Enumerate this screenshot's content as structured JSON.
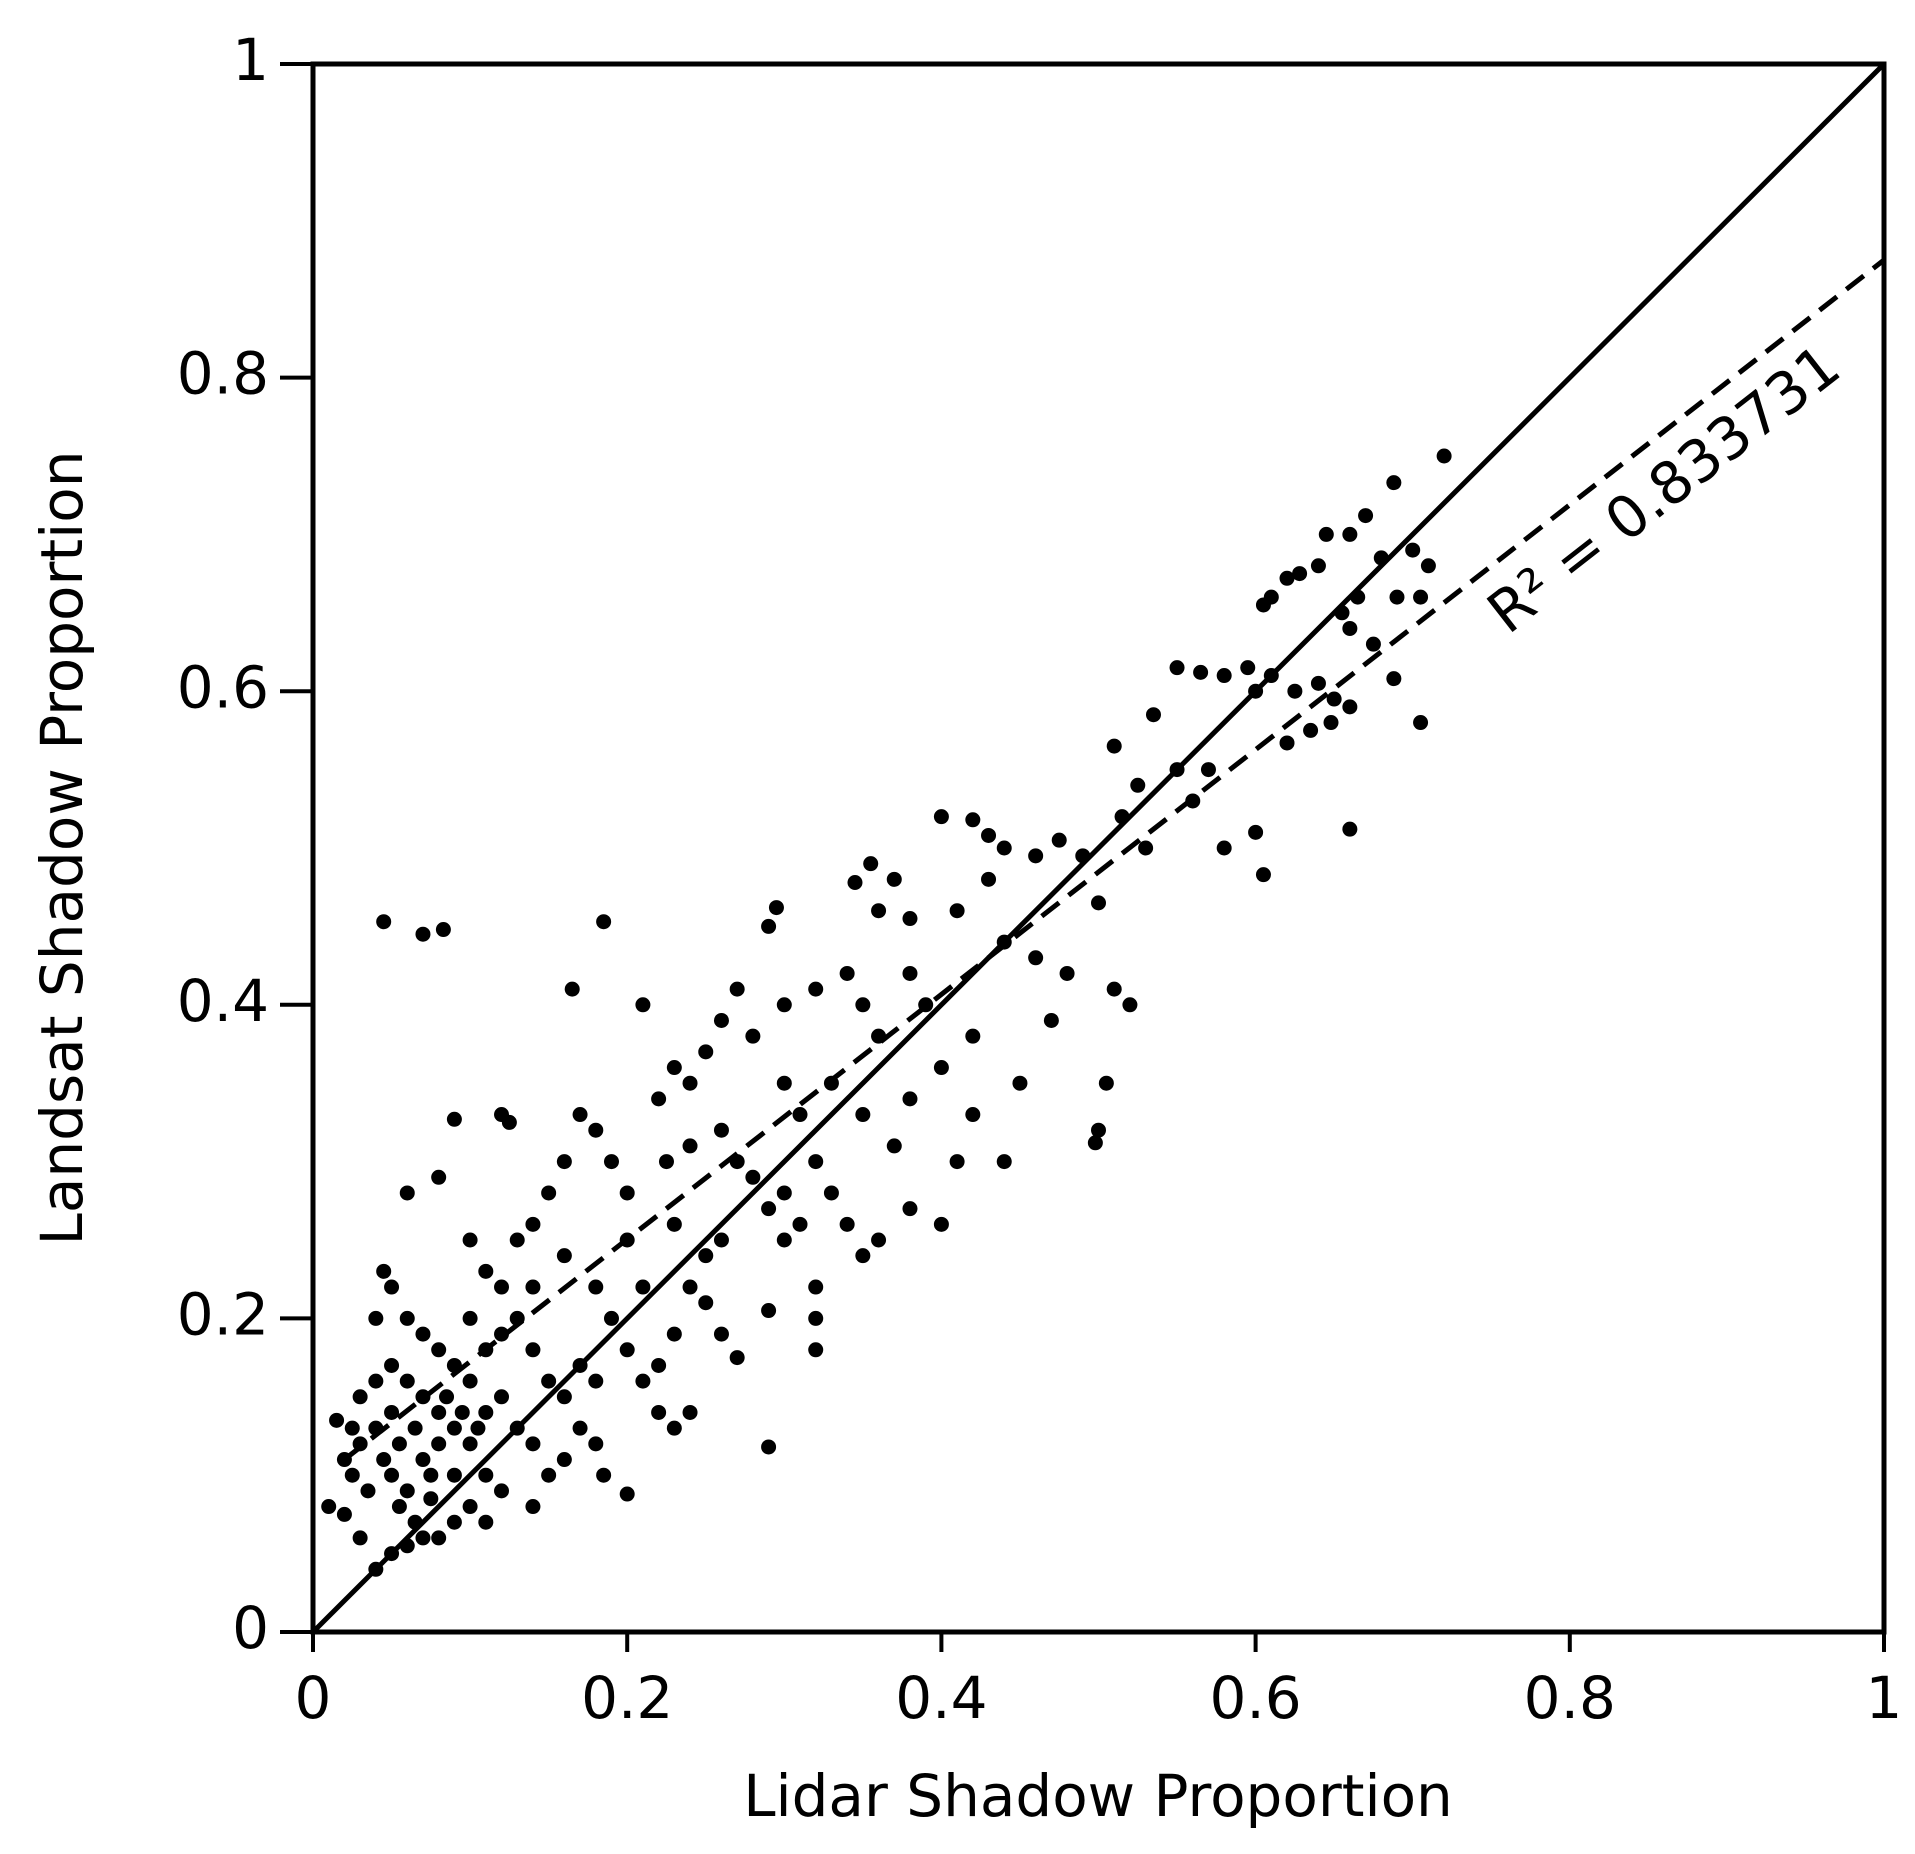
{
  "chart_data": {
    "type": "scatter",
    "x_label": "Lidar Shadow Proportion",
    "y_label": "Landsat Shadow Proportion",
    "annotation": "R² = 0.833731",
    "color": "#000000",
    "xlim": [
      0,
      1
    ],
    "ylim": [
      0,
      1
    ],
    "xticks": [
      0,
      0.2,
      0.4,
      0.6,
      0.8,
      1
    ],
    "yticks": [
      0,
      0.2,
      0.4,
      0.6,
      0.8,
      1
    ],
    "grid": false,
    "x": [
      0.045,
      0.07,
      0.083,
      0.185,
      0.165,
      0.29,
      0.2,
      0.66,
      0.605,
      0.6,
      0.58,
      0.705,
      0.72,
      0.688,
      0.67,
      0.66,
      0.645,
      0.62,
      0.628,
      0.61,
      0.605,
      0.64,
      0.665,
      0.68,
      0.7,
      0.71,
      0.69,
      0.705,
      0.675,
      0.688,
      0.655,
      0.66,
      0.65,
      0.648,
      0.66,
      0.635,
      0.62,
      0.6,
      0.61,
      0.595,
      0.58,
      0.565,
      0.55,
      0.55,
      0.535,
      0.51,
      0.525,
      0.53,
      0.515,
      0.56,
      0.57,
      0.625,
      0.64,
      0.5,
      0.51,
      0.52,
      0.505,
      0.5,
      0.498,
      0.49,
      0.475,
      0.46,
      0.44,
      0.43,
      0.42,
      0.4,
      0.37,
      0.355,
      0.345,
      0.36,
      0.38,
      0.41,
      0.43,
      0.44,
      0.46,
      0.48,
      0.47,
      0.45,
      0.44,
      0.42,
      0.41,
      0.4,
      0.38,
      0.36,
      0.35,
      0.34,
      0.33,
      0.32,
      0.31,
      0.3,
      0.3,
      0.32,
      0.34,
      0.35,
      0.36,
      0.38,
      0.39,
      0.4,
      0.42,
      0.38,
      0.37,
      0.35,
      0.33,
      0.29,
      0.295,
      0.27,
      0.26,
      0.28,
      0.25,
      0.24,
      0.23,
      0.22,
      0.21,
      0.225,
      0.24,
      0.26,
      0.27,
      0.28,
      0.29,
      0.3,
      0.3,
      0.31,
      0.32,
      0.32,
      0.32,
      0.29,
      0.27,
      0.26,
      0.25,
      0.24,
      0.23,
      0.22,
      0.23,
      0.24,
      0.25,
      0.26,
      0.23,
      0.21,
      0.2,
      0.2,
      0.19,
      0.18,
      0.17,
      0.16,
      0.15,
      0.14,
      0.13,
      0.12,
      0.125,
      0.09,
      0.08,
      0.06,
      0.1,
      0.11,
      0.12,
      0.14,
      0.16,
      0.18,
      0.19,
      0.2,
      0.21,
      0.22,
      0.18,
      0.17,
      0.16,
      0.15,
      0.14,
      0.13,
      0.12,
      0.11,
      0.1,
      0.09,
      0.08,
      0.07,
      0.06,
      0.05,
      0.045,
      0.04,
      0.05,
      0.06,
      0.07,
      0.08,
      0.09,
      0.1,
      0.11,
      0.12,
      0.13,
      0.14,
      0.15,
      0.16,
      0.17,
      0.18,
      0.185,
      0.14,
      0.12,
      0.11,
      0.1,
      0.09,
      0.08,
      0.07,
      0.06,
      0.05,
      0.04,
      0.03,
      0.02,
      0.01,
      0.015,
      0.02,
      0.025,
      0.03,
      0.035,
      0.04,
      0.045,
      0.05,
      0.055,
      0.06,
      0.065,
      0.07,
      0.075,
      0.08,
      0.085,
      0.09,
      0.095,
      0.1,
      0.105,
      0.11,
      0.04,
      0.03,
      0.025,
      0.05,
      0.055,
      0.065,
      0.075
    ],
    "values": [
      0.453,
      0.445,
      0.448,
      0.453,
      0.41,
      0.118,
      0.088,
      0.512,
      0.483,
      0.51,
      0.5,
      0.58,
      0.75,
      0.733,
      0.712,
      0.7,
      0.7,
      0.672,
      0.675,
      0.66,
      0.655,
      0.68,
      0.66,
      0.685,
      0.69,
      0.68,
      0.66,
      0.66,
      0.63,
      0.608,
      0.65,
      0.64,
      0.595,
      0.58,
      0.59,
      0.575,
      0.567,
      0.6,
      0.61,
      0.615,
      0.61,
      0.612,
      0.615,
      0.55,
      0.585,
      0.565,
      0.54,
      0.5,
      0.52,
      0.53,
      0.55,
      0.6,
      0.605,
      0.465,
      0.41,
      0.4,
      0.35,
      0.32,
      0.312,
      0.495,
      0.505,
      0.495,
      0.5,
      0.508,
      0.518,
      0.52,
      0.48,
      0.49,
      0.478,
      0.46,
      0.455,
      0.46,
      0.48,
      0.44,
      0.43,
      0.42,
      0.39,
      0.35,
      0.3,
      0.33,
      0.3,
      0.26,
      0.27,
      0.25,
      0.24,
      0.26,
      0.28,
      0.3,
      0.33,
      0.35,
      0.4,
      0.41,
      0.42,
      0.4,
      0.38,
      0.42,
      0.4,
      0.36,
      0.38,
      0.34,
      0.31,
      0.33,
      0.35,
      0.45,
      0.462,
      0.41,
      0.39,
      0.38,
      0.37,
      0.35,
      0.36,
      0.34,
      0.4,
      0.3,
      0.31,
      0.32,
      0.3,
      0.29,
      0.27,
      0.25,
      0.28,
      0.26,
      0.22,
      0.18,
      0.2,
      0.205,
      0.175,
      0.19,
      0.21,
      0.22,
      0.19,
      0.14,
      0.13,
      0.14,
      0.24,
      0.25,
      0.26,
      0.22,
      0.25,
      0.28,
      0.3,
      0.32,
      0.33,
      0.3,
      0.28,
      0.26,
      0.25,
      0.33,
      0.325,
      0.327,
      0.29,
      0.28,
      0.25,
      0.23,
      0.22,
      0.22,
      0.24,
      0.22,
      0.2,
      0.18,
      0.16,
      0.17,
      0.16,
      0.17,
      0.15,
      0.16,
      0.18,
      0.2,
      0.19,
      0.18,
      0.2,
      0.17,
      0.18,
      0.19,
      0.2,
      0.22,
      0.23,
      0.2,
      0.17,
      0.16,
      0.15,
      0.14,
      0.13,
      0.12,
      0.14,
      0.15,
      0.13,
      0.12,
      0.1,
      0.11,
      0.13,
      0.12,
      0.1,
      0.08,
      0.09,
      0.07,
      0.08,
      0.07,
      0.06,
      0.06,
      0.055,
      0.05,
      0.04,
      0.06,
      0.075,
      0.08,
      0.135,
      0.11,
      0.1,
      0.12,
      0.09,
      0.13,
      0.11,
      0.1,
      0.12,
      0.09,
      0.13,
      0.11,
      0.1,
      0.12,
      0.15,
      0.1,
      0.14,
      0.16,
      0.13,
      0.1,
      0.16,
      0.15,
      0.13,
      0.14,
      0.08,
      0.07,
      0.085
    ],
    "reference_lines": [
      {
        "style": "solid",
        "x": [
          0,
          1
        ],
        "values": [
          0,
          1
        ]
      },
      {
        "style": "dashed",
        "x": [
          0.02,
          1
        ],
        "values": [
          0.11,
          0.875
        ]
      }
    ]
  }
}
